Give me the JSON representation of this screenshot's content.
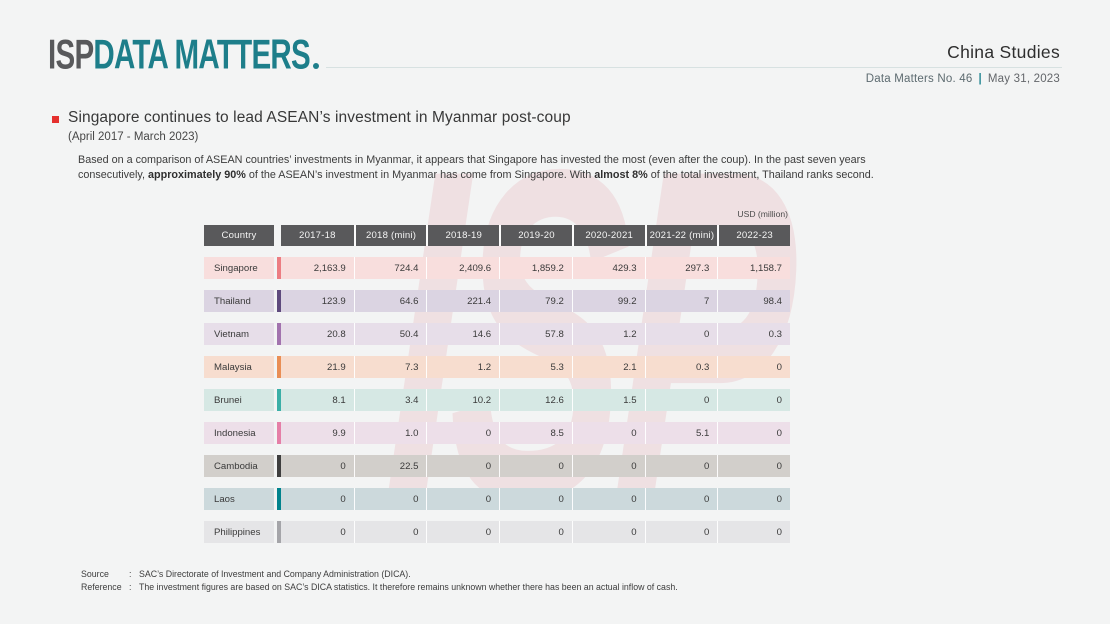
{
  "header": {
    "logo_isp": "ISP",
    "logo_rest": "DATA MATTERS",
    "program": "China Studies",
    "issue": "Data Matters No. 46",
    "separator": "|",
    "date": "May 31, 2023"
  },
  "section": {
    "title": "Singapore continues to lead ASEAN’s investment in Myanmar post-coup",
    "period": "(April 2017 - March 2023)"
  },
  "summary": {
    "text1": "Based on a comparison of ASEAN countries’ investments in Myanmar, it appears that Singapore has invested the most (even after the coup). In the past seven years consecutively, ",
    "bold1": "approximately 90%",
    "text2": " of the ASEAN’s investment in Myanmar has come from Singapore. With ",
    "bold2": "almost 8%",
    "text3": " of the total investment, Thailand ranks second."
  },
  "watermark": "ISP",
  "table": {
    "unit_label": "USD (million)",
    "columns": [
      "Country",
      "2017-18",
      "2018 (mini)",
      "2018-19",
      "2019-20",
      "2020-2021",
      "2021-22 (mini)",
      "2022-23"
    ],
    "rows": [
      {
        "country": "Singapore",
        "values": [
          "2,163.9",
          "724.4",
          "2,409.6",
          "1,859.2",
          "429.3",
          "297.3",
          "1,158.7"
        ],
        "bg": "#f8dedd",
        "accent": "#ec7d82"
      },
      {
        "country": "Thailand",
        "values": [
          "123.9",
          "64.6",
          "221.4",
          "79.2",
          "99.2",
          "7",
          "98.4"
        ],
        "bg": "#dbd4e2",
        "accent": "#5e4a7d"
      },
      {
        "country": "Vietnam",
        "values": [
          "20.8",
          "50.4",
          "14.6",
          "57.8",
          "1.2",
          "0",
          "0.3"
        ],
        "bg": "#e7dee9",
        "accent": "#a273ae"
      },
      {
        "country": "Malaysia",
        "values": [
          "21.9",
          "7.3",
          "1.2",
          "5.3",
          "2.1",
          "0.3",
          "0"
        ],
        "bg": "#f7ddcf",
        "accent": "#e98e55"
      },
      {
        "country": "Brunei",
        "values": [
          "8.1",
          "3.4",
          "10.2",
          "12.6",
          "1.5",
          "0",
          "0"
        ],
        "bg": "#d6e8e4",
        "accent": "#3bafa7"
      },
      {
        "country": "Indonesia",
        "values": [
          "9.9",
          "1.0",
          "0",
          "8.5",
          "0",
          "5.1",
          "0"
        ],
        "bg": "#eddfe9",
        "accent": "#e57fa7"
      },
      {
        "country": "Cambodia",
        "values": [
          "0",
          "22.5",
          "0",
          "0",
          "0",
          "0",
          "0"
        ],
        "bg": "#d2cfcb",
        "accent": "#3e3e3e"
      },
      {
        "country": "Laos",
        "values": [
          "0",
          "0",
          "0",
          "0",
          "0",
          "0",
          "0"
        ],
        "bg": "#ccd9dc",
        "accent": "#00838d"
      },
      {
        "country": "Philippines",
        "values": [
          "0",
          "0",
          "0",
          "0",
          "0",
          "0",
          "0"
        ],
        "bg": "#e5e5e7",
        "accent": "#a5a5a9"
      }
    ]
  },
  "footer": {
    "source_label": "Source",
    "colon": ":",
    "source_text": "SAC’s Directorate of Investment and Company Administration (DICA).",
    "reference_label": "Reference",
    "reference_text": "The investment figures are based on SAC’s DICA statistics. It therefore remains unknown whether there has been an actual inflow of cash."
  },
  "colors": {
    "page_bg": "#f3f4f4",
    "brand_teal": "#1d7e8a",
    "brand_gray": "#58595b",
    "accent_red": "#e5302e",
    "table_header_bg": "#59595b"
  }
}
